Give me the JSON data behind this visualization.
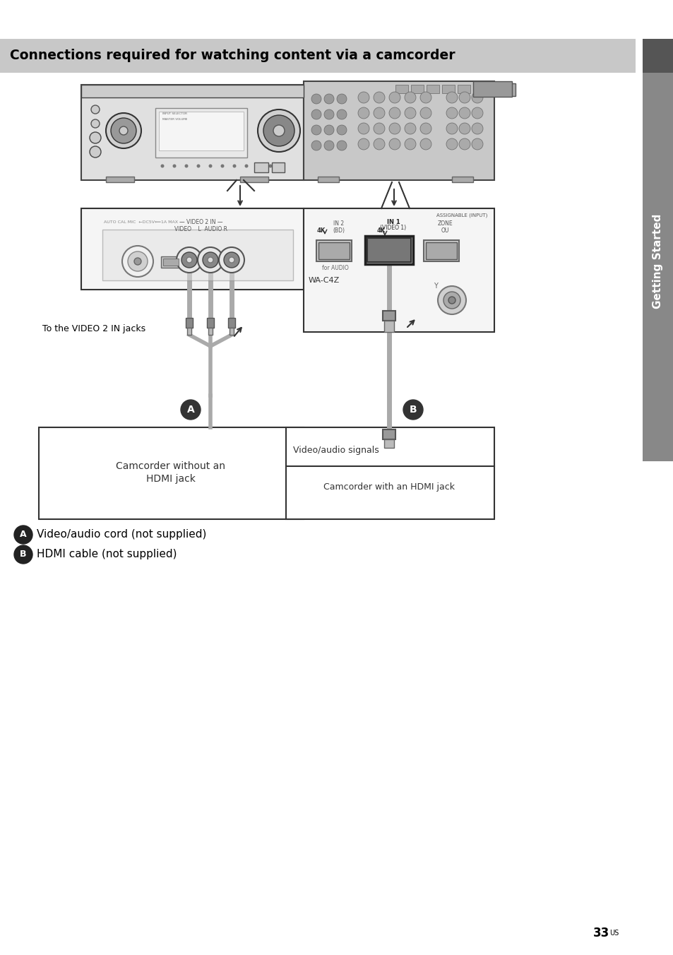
{
  "title": "Connections required for watching content via a camcorder",
  "title_bg": "#c8c8c8",
  "title_color": "#000000",
  "title_fontsize": 13.5,
  "page_bg": "#ffffff",
  "sidebar_text": "Getting Started",
  "sidebar_bg": "#888888",
  "sidebar_dark_bg": "#555555",
  "page_number_main": "33",
  "page_number_super": "US",
  "label_a_text": "Video/audio cord (not supplied)",
  "label_b_text": "HDMI cable (not supplied)",
  "camcorder_without_text1": "Camcorder without an",
  "camcorder_without_text2": "HDMI jack",
  "camcorder_with_text": "Camcorder with an HDMI jack",
  "video_audio_signals": "Video/audio signals",
  "to_video2_text": "To the VIDEO 2 IN jacks"
}
